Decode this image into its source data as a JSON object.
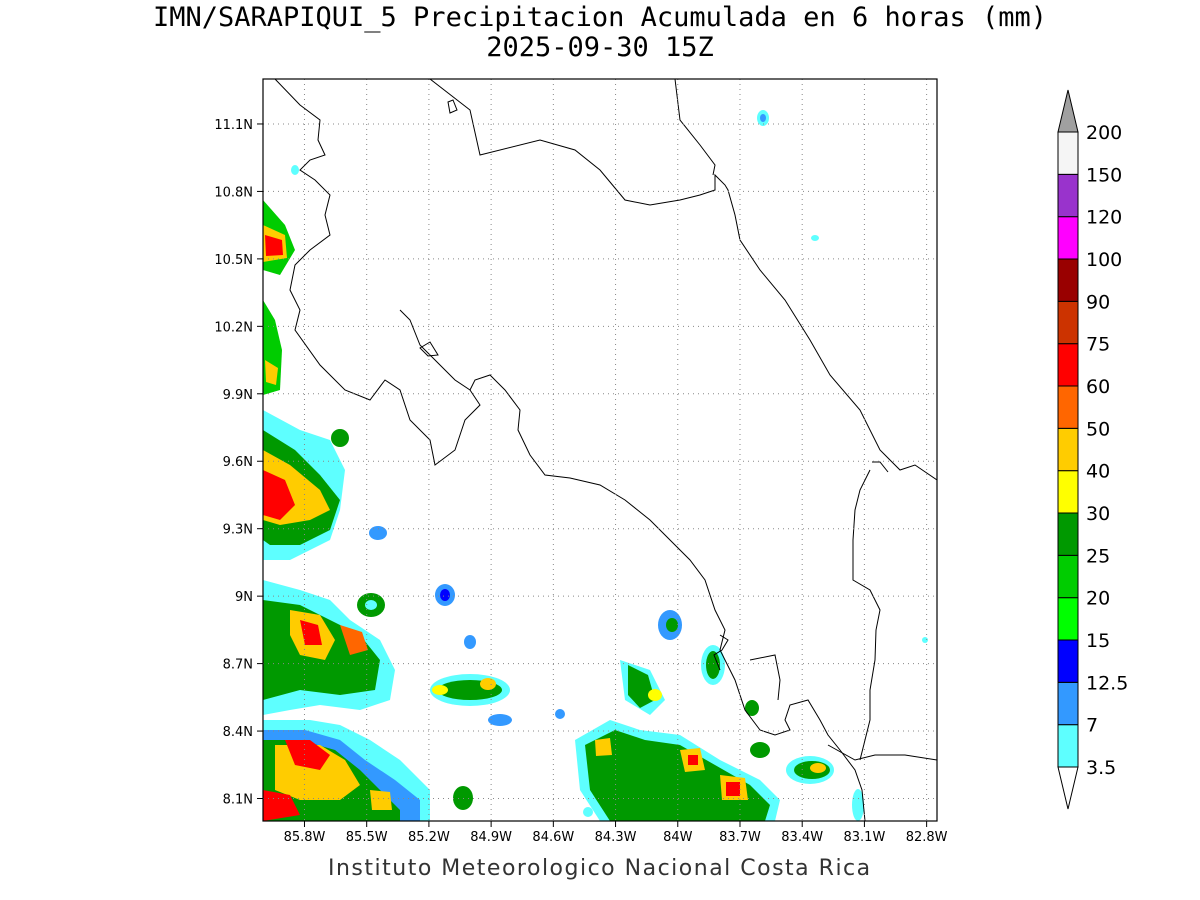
{
  "title_line1": "IMN/SARAPIQUI_5 Precipitacion Acumulada en 6 horas (mm)",
  "title_line2": "2025-09-30 15Z",
  "footer": "Instituto Meteorologico Nacional Costa Rica",
  "map": {
    "lon_range": [
      -86.0,
      -82.75
    ],
    "lat_range": [
      8.0,
      11.3
    ],
    "lon_ticks": [
      {
        "value": -85.8,
        "label": "85.8W"
      },
      {
        "value": -85.5,
        "label": "85.5W"
      },
      {
        "value": -85.2,
        "label": "85.2W"
      },
      {
        "value": -84.9,
        "label": "84.9W"
      },
      {
        "value": -84.6,
        "label": "84.6W"
      },
      {
        "value": -84.3,
        "label": "84.3W"
      },
      {
        "value": -84.0,
        "label": "84W"
      },
      {
        "value": -83.7,
        "label": "83.7W"
      },
      {
        "value": -83.4,
        "label": "83.4W"
      },
      {
        "value": -83.1,
        "label": "83.1W"
      },
      {
        "value": -82.8,
        "label": "82.8W"
      }
    ],
    "lat_ticks": [
      {
        "value": 8.1,
        "label": "8.1N"
      },
      {
        "value": 8.4,
        "label": "8.4N"
      },
      {
        "value": 8.7,
        "label": "8.7N"
      },
      {
        "value": 9.0,
        "label": "9N"
      },
      {
        "value": 9.3,
        "label": "9.3N"
      },
      {
        "value": 9.6,
        "label": "9.6N"
      },
      {
        "value": 9.9,
        "label": "9.9N"
      },
      {
        "value": 10.2,
        "label": "10.2N"
      },
      {
        "value": 10.5,
        "label": "10.5N"
      },
      {
        "value": 10.8,
        "label": "10.8N"
      },
      {
        "value": 11.1,
        "label": "11.1N"
      }
    ],
    "grid": true
  },
  "colorbar": {
    "labels": [
      "3.5",
      "7",
      "12.5",
      "15",
      "20",
      "25",
      "30",
      "40",
      "50",
      "60",
      "75",
      "90",
      "100",
      "120",
      "150",
      "200"
    ],
    "colors": [
      "#5effff",
      "#3399ff",
      "#0000ff",
      "#00ff00",
      "#00cc00",
      "#009900",
      "#ffff00",
      "#ffcc00",
      "#ff6600",
      "#ff0000",
      "#cc3300",
      "#990000",
      "#ff00ff",
      "#9933cc",
      "#f5f5f5",
      "#a0a0a0"
    ]
  }
}
